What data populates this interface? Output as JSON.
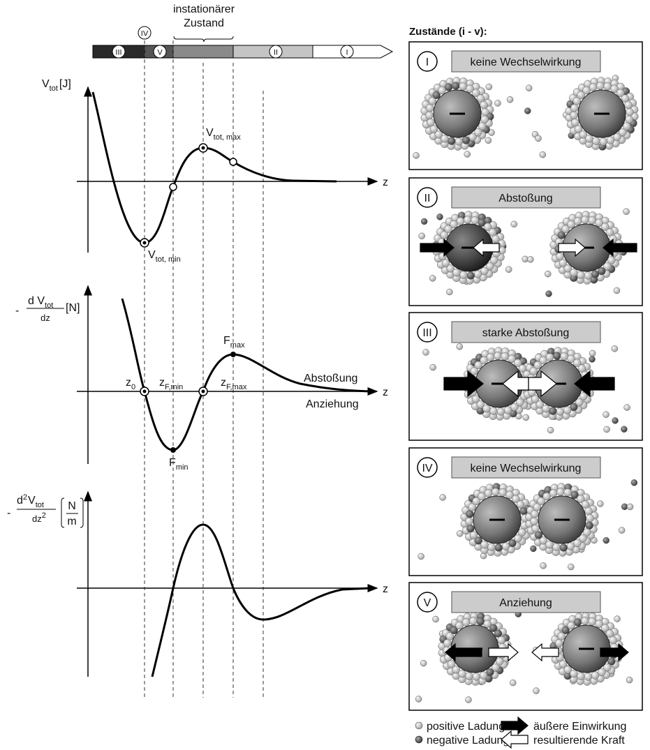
{
  "timeline": {
    "header": [
      "instationärer",
      "Zustand"
    ],
    "markers": [
      "III",
      "IV",
      "V",
      "II",
      "I"
    ]
  },
  "plot1": {
    "y_main": "V",
    "y_sub": "tot",
    "y_unit": "[J]",
    "x": "z",
    "max_main": "V",
    "max_sub": "tot, max",
    "min_main": "V",
    "min_sub": "tot, min"
  },
  "plot2": {
    "y_sign": "-",
    "y_num_main": "d V",
    "y_num_sub": "tot",
    "y_den": "dz",
    "y_unit": "[N]",
    "x": "z",
    "z0_main": "z",
    "z0_sub": "0",
    "zfmin_main": "z",
    "zfmin_sub": "F,min",
    "zfmax_main": "z",
    "zfmax_sub": "F,max",
    "fmax_main": "F",
    "fmax_sub": "max",
    "fmin_main": "F",
    "fmin_sub": "min",
    "upper": "Abstoßung",
    "lower": "Anziehung"
  },
  "plot3": {
    "y_sign": "-",
    "y_num_d": "d",
    "y_num_exp": "2",
    "y_num_main": "V",
    "y_num_sub": "tot",
    "y_den": "dz",
    "y_den_exp": "2",
    "unit_num": "N",
    "unit_den": "m",
    "x": "z"
  },
  "states": {
    "title": "Zustände (i - v):",
    "panels": [
      {
        "label": "I",
        "text": "keine Wechselwirkung"
      },
      {
        "label": "II",
        "text": "Abstoßung"
      },
      {
        "label": "III",
        "text": "starke Abstoßung"
      },
      {
        "label": "IV",
        "text": "keine Wechselwirkung"
      },
      {
        "label": "V",
        "text": "Anziehung"
      }
    ]
  },
  "legend": {
    "positive": "positive Ladung",
    "negative": "negative Ladung",
    "external": "äußere Einwirkung",
    "resulting": "resultierende Kraft"
  }
}
